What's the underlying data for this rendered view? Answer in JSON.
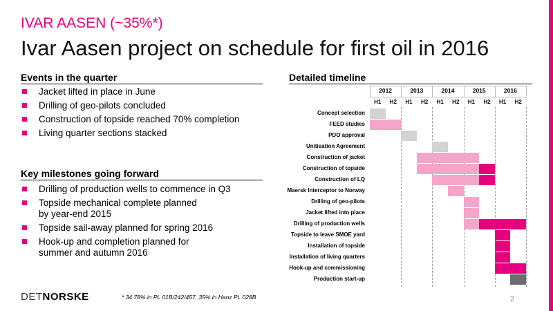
{
  "header": {
    "subtitle": "IVAR AASEN (~35%*)",
    "title": "Ivar Aasen project on schedule for first oil in 2016"
  },
  "events": {
    "heading": "Events in the quarter",
    "items": [
      "Jacket lifted in place in June",
      "Drilling of geo-pilots concluded",
      "Construction of topside reached 70% completion",
      "Living quarter sections stacked"
    ]
  },
  "milestones": {
    "heading": "Key milestones going forward",
    "items": [
      [
        "Drilling of production wells to commence in Q3"
      ],
      [
        "Topside mechanical complete planned",
        "by year-end 2015"
      ],
      [
        "Topside sail-away planned for spring 2016"
      ],
      [
        "Hook-up and completion planned for",
        "summer and autumn 2016"
      ]
    ]
  },
  "timeline": {
    "heading": "Detailed timeline",
    "years": [
      "2012",
      "2013",
      "2014",
      "2015",
      "2016"
    ],
    "halves": [
      "H1",
      "H2",
      "H1",
      "H2",
      "H1",
      "H2",
      "H1",
      "H2",
      "H1",
      "H2"
    ],
    "colors": {
      "grey": "#d3d3d3",
      "pink": "#f4a6c9",
      "magenta": "#e6007e",
      "dark": "#6d6d6d"
    },
    "tasks": [
      {
        "label": "Concept selection",
        "bars": [
          {
            "start": 0,
            "end": 1,
            "color": "grey"
          }
        ]
      },
      {
        "label": "FEED studies",
        "bars": [
          {
            "start": 0,
            "end": 2,
            "color": "pink"
          }
        ]
      },
      {
        "label": "PDO approval",
        "bars": [
          {
            "start": 2,
            "end": 3,
            "color": "grey"
          }
        ]
      },
      {
        "label": "Unitisation Agreement",
        "bars": [
          {
            "start": 4,
            "end": 5,
            "color": "grey"
          }
        ]
      },
      {
        "label": "Construction of jacket",
        "bars": [
          {
            "start": 3,
            "end": 7,
            "color": "pink"
          }
        ]
      },
      {
        "label": "Construction of topside",
        "bars": [
          {
            "start": 3,
            "end": 7,
            "color": "pink"
          },
          {
            "start": 7,
            "end": 8,
            "color": "magenta"
          }
        ]
      },
      {
        "label": "Construction of LQ",
        "bars": [
          {
            "start": 4,
            "end": 7,
            "color": "pink"
          },
          {
            "start": 7,
            "end": 8,
            "color": "magenta"
          }
        ]
      },
      {
        "label": "Maersk Interceptor to Norway",
        "bars": [
          {
            "start": 5,
            "end": 6,
            "color": "pink"
          }
        ]
      },
      {
        "label": "Drilling of geo-pilots",
        "bars": [
          {
            "start": 6,
            "end": 7,
            "color": "pink"
          }
        ]
      },
      {
        "label": "Jacket lifted into place",
        "bars": [
          {
            "start": 6,
            "end": 7,
            "color": "pink"
          }
        ]
      },
      {
        "label": "Drilling of production wells",
        "bars": [
          {
            "start": 6,
            "end": 7,
            "color": "pink"
          },
          {
            "start": 7,
            "end": 10,
            "color": "magenta"
          }
        ]
      },
      {
        "label": "Topside to leave SMOE yard",
        "bars": [
          {
            "start": 8,
            "end": 9,
            "color": "magenta"
          }
        ]
      },
      {
        "label": "Installation of topside",
        "bars": [
          {
            "start": 8,
            "end": 9,
            "color": "magenta"
          }
        ]
      },
      {
        "label": "Installation of living quarters",
        "bars": [
          {
            "start": 8,
            "end": 9,
            "color": "magenta"
          }
        ]
      },
      {
        "label": "Hook-up and commissioning",
        "bars": [
          {
            "start": 8,
            "end": 10,
            "color": "magenta"
          }
        ]
      },
      {
        "label": "Production start-up",
        "bars": [
          {
            "start": 9,
            "end": 10,
            "color": "dark"
          }
        ]
      }
    ]
  },
  "footer": {
    "logo_light": "DET",
    "logo_bold": "NORSKE",
    "footnote": "* 34.78% in PL 01B/242/457, 35% in Hanz PL 028B",
    "page": "2"
  }
}
